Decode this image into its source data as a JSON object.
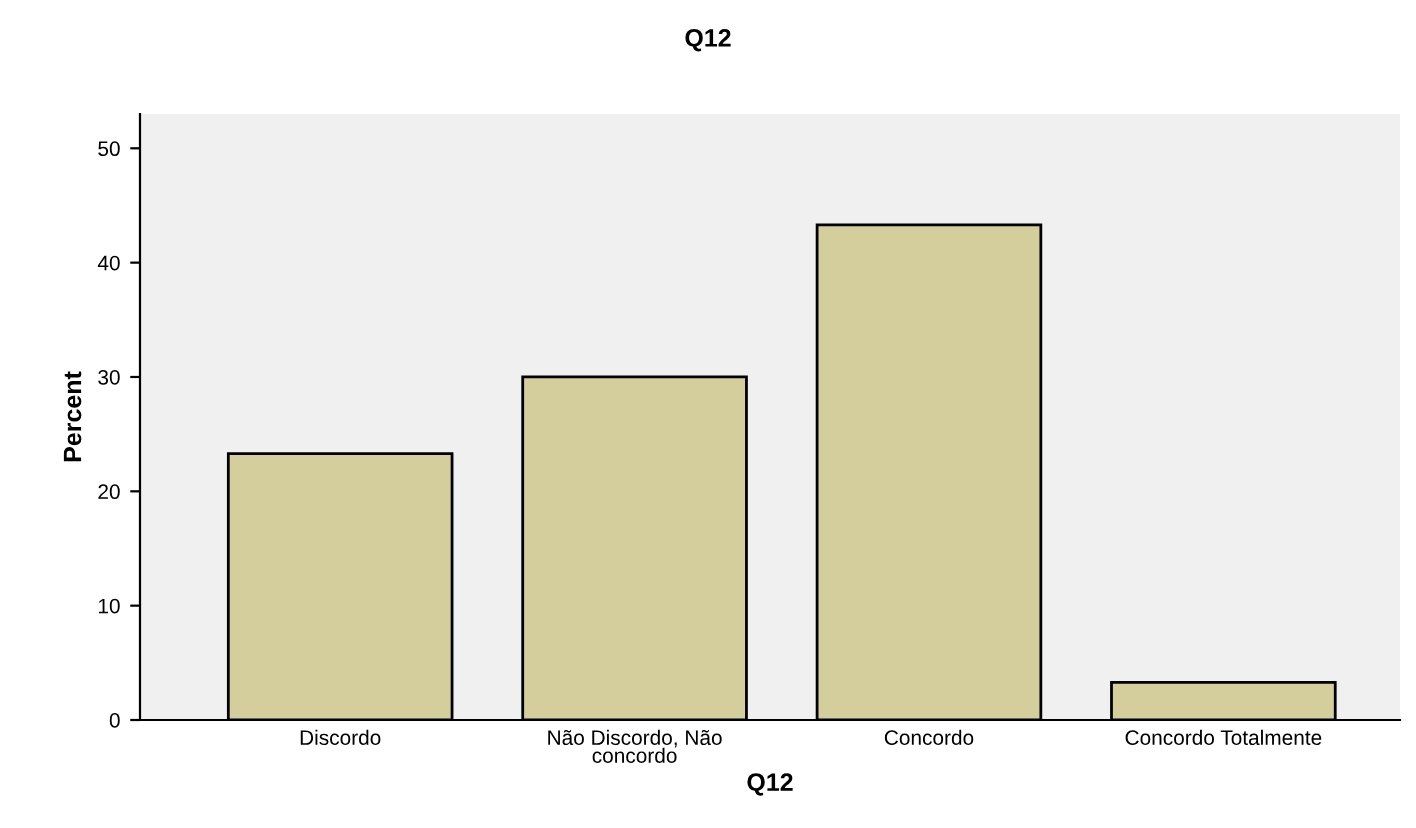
{
  "chart_data": {
    "type": "bar",
    "title": "Q12",
    "xlabel": "Q12",
    "ylabel": "Percent",
    "categories": [
      "Discordo",
      "Não Discordo, Não\nconcordo",
      "Concordo",
      "Concordo Totalmente"
    ],
    "values": [
      23.3,
      30.0,
      43.3,
      3.3
    ],
    "color": "#d3ce9b",
    "ylim": [
      0,
      53
    ],
    "yticks": [
      0,
      10,
      20,
      30,
      40,
      50
    ],
    "grid": false,
    "legend": false
  }
}
